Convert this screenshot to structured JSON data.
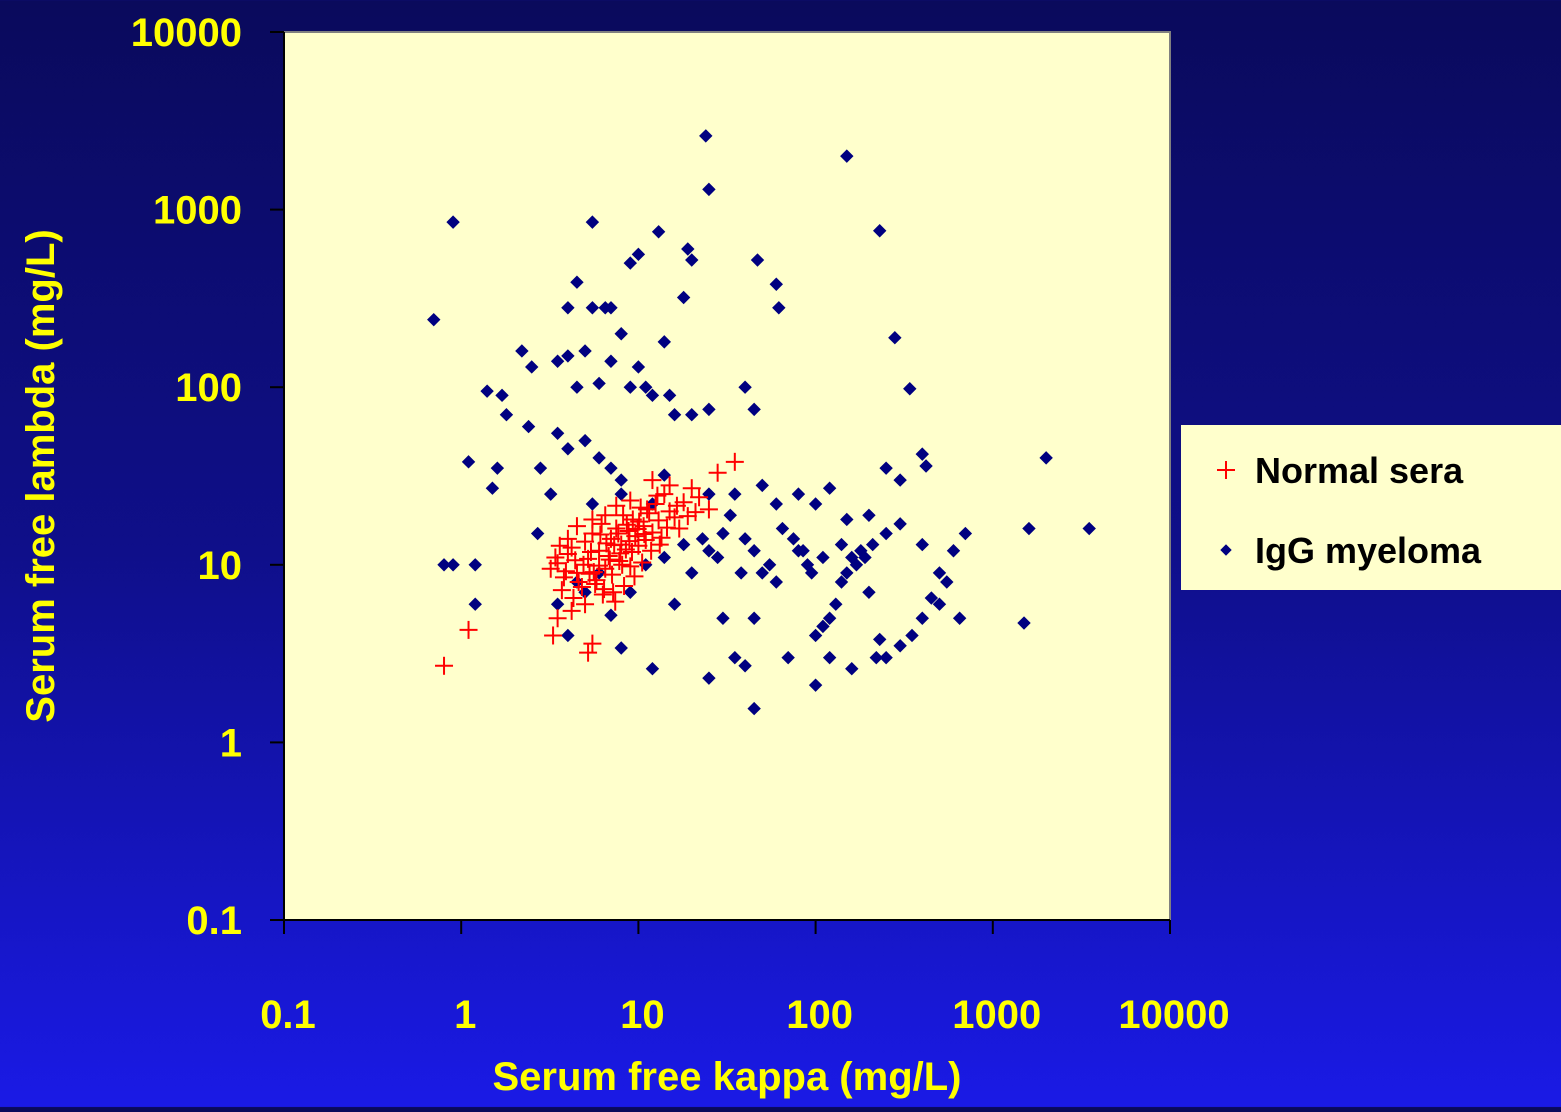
{
  "chart_data": {
    "type": "scatter",
    "xlabel": "Serum free kappa (mg/L)",
    "ylabel": "Serum free lambda (mg/L)",
    "xscale": "log",
    "yscale": "log",
    "xlim": [
      0.1,
      10000
    ],
    "ylim": [
      0.1,
      10000
    ],
    "xticks": [
      "0.1",
      "1",
      "10",
      "100",
      "1000",
      "10000"
    ],
    "yticks": [
      "0.1",
      "1",
      "10",
      "100",
      "1000",
      "10000"
    ],
    "grid": false,
    "legend_position": "right",
    "plot_background": "#ffffcc",
    "series": [
      {
        "name": "Normal sera",
        "marker": "plus",
        "color": "#ff0000",
        "points": [
          [
            0.8,
            2.7
          ],
          [
            1.1,
            4.3
          ],
          [
            5.2,
            3.2
          ],
          [
            5.5,
            3.6
          ],
          [
            3.3,
            4.0
          ],
          [
            3.5,
            5.0
          ],
          [
            4.2,
            5.5
          ],
          [
            3.2,
            9.5
          ],
          [
            3.5,
            10.2
          ],
          [
            3.8,
            8.5
          ],
          [
            4.0,
            11.5
          ],
          [
            4.2,
            12.5
          ],
          [
            4.5,
            9.0
          ],
          [
            4.8,
            7.5
          ],
          [
            5.0,
            13.5
          ],
          [
            5.2,
            10.8
          ],
          [
            5.5,
            15.0
          ],
          [
            5.8,
            8.2
          ],
          [
            6.0,
            12.0
          ],
          [
            6.2,
            17.0
          ],
          [
            6.5,
            9.5
          ],
          [
            6.8,
            11.2
          ],
          [
            7.0,
            14.0
          ],
          [
            7.2,
            7.0
          ],
          [
            7.5,
            16.0
          ],
          [
            7.8,
            10.5
          ],
          [
            8.0,
            13.0
          ],
          [
            8.2,
            19.0
          ],
          [
            8.5,
            12.2
          ],
          [
            8.8,
            15.5
          ],
          [
            9.0,
            9.8
          ],
          [
            9.3,
            18.0
          ],
          [
            9.6,
            14.5
          ],
          [
            10.0,
            12.8
          ],
          [
            10.3,
            21.0
          ],
          [
            10.7,
            16.5
          ],
          [
            11.0,
            13.8
          ],
          [
            11.5,
            19.5
          ],
          [
            12.0,
            15.2
          ],
          [
            12.5,
            22.0
          ],
          [
            13.0,
            17.8
          ],
          [
            13.5,
            14.2
          ],
          [
            14.0,
            25.0
          ],
          [
            15.0,
            20.0
          ],
          [
            16.0,
            18.5
          ],
          [
            17.0,
            16.0
          ],
          [
            18.0,
            22.5
          ],
          [
            20.0,
            27.0
          ],
          [
            22.0,
            24.0
          ],
          [
            25.0,
            20.5
          ],
          [
            28.0,
            33.0
          ],
          [
            35.0,
            38.0
          ],
          [
            12.0,
            30.0
          ],
          [
            15.0,
            28.0
          ],
          [
            9.0,
            23.0
          ],
          [
            7.5,
            21.5
          ],
          [
            6.5,
            19.0
          ],
          [
            5.5,
            18.0
          ],
          [
            4.5,
            16.5
          ],
          [
            4.0,
            14.0
          ],
          [
            3.6,
            12.8
          ],
          [
            3.4,
            11.0
          ],
          [
            3.7,
            7.2
          ],
          [
            4.3,
            6.5
          ],
          [
            5.0,
            6.0
          ],
          [
            5.7,
            7.8
          ],
          [
            6.3,
            6.8
          ],
          [
            7.1,
            8.8
          ],
          [
            8.1,
            10.0
          ],
          [
            9.2,
            11.8
          ],
          [
            10.5,
            10.3
          ],
          [
            11.8,
            12.0
          ],
          [
            13.2,
            13.0
          ],
          [
            6.1,
            14.8
          ],
          [
            7.3,
            12.9
          ],
          [
            8.6,
            16.8
          ],
          [
            10.1,
            17.5
          ],
          [
            11.2,
            20.5
          ],
          [
            4.9,
            10.0
          ],
          [
            5.4,
            11.8
          ],
          [
            6.6,
            13.2
          ],
          [
            7.7,
            15.0
          ],
          [
            8.9,
            13.6
          ],
          [
            9.9,
            15.9
          ],
          [
            3.9,
            9.2
          ],
          [
            4.6,
            8.0
          ],
          [
            5.3,
            8.9
          ],
          [
            6.0,
            9.9
          ],
          [
            6.9,
            10.7
          ],
          [
            7.9,
            11.6
          ],
          [
            14.5,
            16.2
          ],
          [
            16.5,
            21.5
          ],
          [
            19.0,
            18.8
          ],
          [
            21.0,
            19.8
          ],
          [
            12.8,
            24.5
          ],
          [
            10.8,
            14.9
          ],
          [
            9.5,
            8.6
          ],
          [
            8.3,
            7.6
          ],
          [
            7.4,
            6.2
          ],
          [
            6.4,
            7.3
          ],
          [
            5.6,
            9.1
          ],
          [
            4.4,
            10.6
          ]
        ]
      },
      {
        "name": "IgG myeloma",
        "marker": "diamond",
        "color": "#000080",
        "points": [
          [
            0.7,
            240
          ],
          [
            0.9,
            850
          ],
          [
            5.5,
            850
          ],
          [
            24,
            2600
          ],
          [
            25,
            1300
          ],
          [
            150,
            2000
          ],
          [
            230,
            760
          ],
          [
            13,
            750
          ],
          [
            10,
            560
          ],
          [
            9,
            500
          ],
          [
            19,
            600
          ],
          [
            20,
            520
          ],
          [
            47,
            520
          ],
          [
            60,
            380
          ],
          [
            62,
            280
          ],
          [
            4,
            280
          ],
          [
            5.5,
            280
          ],
          [
            6.5,
            280
          ],
          [
            8,
            200
          ],
          [
            7,
            280
          ],
          [
            4.5,
            390
          ],
          [
            14,
            180
          ],
          [
            18,
            320
          ],
          [
            280,
            190
          ],
          [
            2.2,
            160
          ],
          [
            2.5,
            130
          ],
          [
            3.5,
            140
          ],
          [
            4,
            150
          ],
          [
            4.5,
            100
          ],
          [
            5,
            160
          ],
          [
            6,
            105
          ],
          [
            7,
            140
          ],
          [
            9,
            100
          ],
          [
            10,
            130
          ],
          [
            11,
            100
          ],
          [
            12,
            90
          ],
          [
            15,
            90
          ],
          [
            16,
            70
          ],
          [
            20,
            70
          ],
          [
            25,
            75
          ],
          [
            40,
            100
          ],
          [
            45,
            75
          ],
          [
            1.4,
            95
          ],
          [
            1.7,
            90
          ],
          [
            1.8,
            70
          ],
          [
            2.4,
            60
          ],
          [
            3.5,
            55
          ],
          [
            4,
            45
          ],
          [
            5,
            50
          ],
          [
            6,
            40
          ],
          [
            7,
            35
          ],
          [
            8,
            30
          ],
          [
            340,
            98
          ],
          [
            1.1,
            38
          ],
          [
            1.5,
            27
          ],
          [
            1.6,
            35
          ],
          [
            2.8,
            35
          ],
          [
            3.2,
            25
          ],
          [
            5.5,
            22
          ],
          [
            8,
            25
          ],
          [
            12,
            22
          ],
          [
            14,
            32
          ],
          [
            25,
            25
          ],
          [
            35,
            25
          ],
          [
            50,
            28
          ],
          [
            60,
            22
          ],
          [
            80,
            25
          ],
          [
            100,
            22
          ],
          [
            120,
            27
          ],
          [
            150,
            18
          ],
          [
            200,
            19
          ],
          [
            250,
            35
          ],
          [
            300,
            30
          ],
          [
            400,
            42
          ],
          [
            420,
            36
          ],
          [
            2000,
            40
          ],
          [
            1600,
            16
          ],
          [
            3500,
            16
          ],
          [
            700,
            15
          ],
          [
            600,
            12
          ],
          [
            550,
            8
          ],
          [
            500,
            6
          ],
          [
            450,
            6.5
          ],
          [
            400,
            5
          ],
          [
            350,
            4
          ],
          [
            300,
            3.5
          ],
          [
            250,
            3
          ],
          [
            230,
            3.8
          ],
          [
            200,
            7
          ],
          [
            180,
            12
          ],
          [
            160,
            11
          ],
          [
            150,
            9
          ],
          [
            140,
            8
          ],
          [
            130,
            6
          ],
          [
            120,
            5
          ],
          [
            110,
            4.5
          ],
          [
            100,
            4
          ],
          [
            90,
            10
          ],
          [
            80,
            12
          ],
          [
            70,
            3
          ],
          [
            60,
            8
          ],
          [
            50,
            9
          ],
          [
            45,
            5
          ],
          [
            40,
            2.7
          ],
          [
            35,
            3
          ],
          [
            30,
            5
          ],
          [
            25,
            2.3
          ],
          [
            0.9,
            10
          ],
          [
            1.2,
            10
          ],
          [
            1.2,
            6
          ],
          [
            0.8,
            10
          ],
          [
            2.7,
            15
          ],
          [
            3.5,
            6
          ],
          [
            4,
            4
          ],
          [
            8,
            3.4
          ],
          [
            12,
            2.6
          ],
          [
            16,
            6
          ],
          [
            20,
            9
          ],
          [
            25,
            12
          ],
          [
            30,
            15
          ],
          [
            40,
            14
          ],
          [
            45,
            1.55
          ],
          [
            100,
            2.1
          ],
          [
            120,
            3
          ],
          [
            160,
            2.6
          ],
          [
            220,
            3
          ],
          [
            1500,
            4.7
          ],
          [
            650,
            5
          ],
          [
            500,
            9
          ],
          [
            400,
            13
          ],
          [
            300,
            17
          ],
          [
            250,
            15
          ],
          [
            210,
            13
          ],
          [
            190,
            11
          ],
          [
            170,
            10
          ],
          [
            140,
            13
          ],
          [
            110,
            11
          ],
          [
            95,
            9
          ],
          [
            85,
            12
          ],
          [
            75,
            14
          ],
          [
            65,
            16
          ],
          [
            55,
            10
          ],
          [
            45,
            12
          ],
          [
            38,
            9
          ],
          [
            33,
            19
          ],
          [
            28,
            11
          ],
          [
            23,
            14
          ],
          [
            18,
            13
          ],
          [
            14,
            11
          ],
          [
            11,
            10
          ],
          [
            9,
            7
          ],
          [
            7,
            5.2
          ],
          [
            6,
            9
          ],
          [
            5,
            7
          ],
          [
            4.5,
            8
          ]
        ]
      }
    ]
  }
}
